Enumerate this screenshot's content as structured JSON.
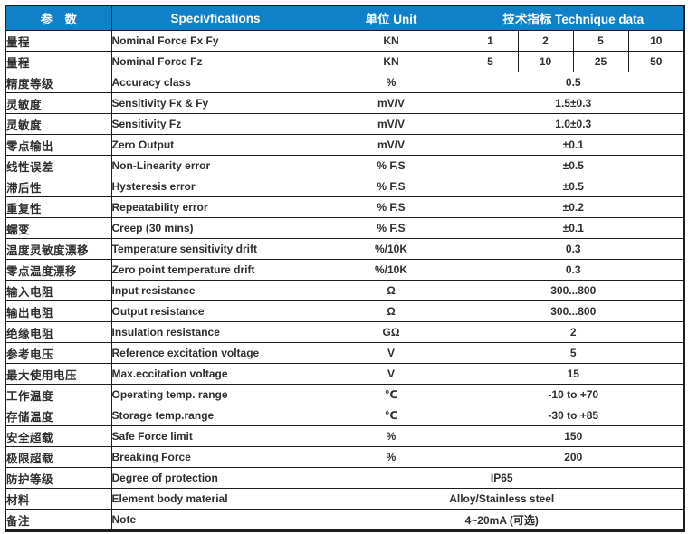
{
  "table": {
    "header": {
      "param": "参　数",
      "spec": "Specivfications",
      "unit": "单位  Unit",
      "data": "技术指标     Technique data"
    },
    "accent_color": "#1081c8",
    "rows": [
      {
        "param": "量程",
        "spec": "Nominal Force Fx Fy",
        "unit": "KN",
        "values": [
          "1",
          "2",
          "5",
          "10"
        ]
      },
      {
        "param": "量程",
        "spec": "Nominal Force Fz",
        "unit": "KN",
        "values": [
          "5",
          "10",
          "25",
          "50"
        ]
      },
      {
        "param": "精度等级",
        "spec": "Accuracy class",
        "unit": "%",
        "value": "0.5"
      },
      {
        "param": "灵敏度",
        "spec": "Sensitivity Fx & Fy",
        "unit": "mV/V",
        "value": "1.5±0.3"
      },
      {
        "param": "灵敏度",
        "spec": "Sensitivity Fz",
        "unit": "mV/V",
        "value": "1.0±0.3"
      },
      {
        "param": "零点输出",
        "spec": "Zero Output",
        "unit": "mV/V",
        "value": "±0.1"
      },
      {
        "param": "线性误差",
        "spec": "Non-Linearity error",
        "unit": "% F.S",
        "value": "±0.5"
      },
      {
        "param": "滞后性",
        "spec": "Hysteresis error",
        "unit": "% F.S",
        "value": "±0.5"
      },
      {
        "param": "重复性",
        "spec": "Repeatability error",
        "unit": "% F.S",
        "value": "±0.2"
      },
      {
        "param": "蠕变",
        "spec": "Creep (30 mins)",
        "unit": "% F.S",
        "value": "±0.1"
      },
      {
        "param": "温度灵敏度漂移",
        "spec": "Temperature sensitivity drift",
        "unit": "%/10K",
        "value": "0.3"
      },
      {
        "param": "零点温度漂移",
        "spec": "Zero point temperature drift",
        "unit": "%/10K",
        "value": "0.3"
      },
      {
        "param": "输入电阻",
        "spec": "Input resistance",
        "unit": "Ω",
        "value": "300...800"
      },
      {
        "param": "输出电阻",
        "spec": "Output resistance",
        "unit": "Ω",
        "value": "300...800"
      },
      {
        "param": "绝缘电阻",
        "spec": "Insulation resistance",
        "unit": "GΩ",
        "value": "2"
      },
      {
        "param": "参考电压",
        "spec": "Reference excitation voltage",
        "unit": "V",
        "value": "5"
      },
      {
        "param": "最大使用电压",
        "spec": "Max.eccitation voltage",
        "unit": "V",
        "value": "15"
      },
      {
        "param": "工作温度",
        "spec": "Operating temp. range",
        "unit": "℃",
        "value": "-10 to +70"
      },
      {
        "param": "存储温度",
        "spec": "Storage temp.range",
        "unit": "℃",
        "value": "-30 to +85"
      },
      {
        "param": "安全超载",
        "spec": "Safe Force limit",
        "unit": "%",
        "value": "150"
      },
      {
        "param": "极限超载",
        "spec": "Breaking Force",
        "unit": "%",
        "value": "200"
      },
      {
        "param": "防护等级",
        "spec": "Degree of protection",
        "merged": true,
        "value": "IP65"
      },
      {
        "param": "材料",
        "spec": "Element body material",
        "merged": true,
        "value": "Alloy/Stainless steel"
      },
      {
        "param": "备注",
        "spec": "Note",
        "merged": true,
        "value": "4~20mA (可选)"
      }
    ]
  }
}
